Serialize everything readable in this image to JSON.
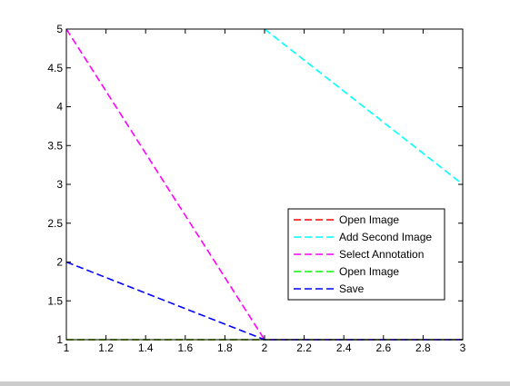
{
  "chart_data": {
    "type": "line",
    "title": "",
    "xlabel": "",
    "ylabel": "",
    "xlim": [
      1,
      3
    ],
    "ylim": [
      1,
      5
    ],
    "xticks": [
      1,
      1.2,
      1.4,
      1.6,
      1.8,
      2,
      2.2,
      2.4,
      2.6,
      2.8,
      3
    ],
    "xtick_labels": [
      "1",
      "1.2",
      "1.4",
      "1.6",
      "1.8",
      "2",
      "2.2",
      "2.4",
      "2.6",
      "2.8",
      "3"
    ],
    "yticks": [
      1,
      1.5,
      2,
      2.5,
      3,
      3.5,
      4,
      4.5,
      5
    ],
    "ytick_labels": [
      "1",
      "1.5",
      "2",
      "2.5",
      "3",
      "3.5",
      "4",
      "4.5",
      "5"
    ],
    "grid": false,
    "legend_position": "lower-right",
    "line_style": "dashed",
    "series": [
      {
        "name": "Open Image",
        "color": "#ff0000",
        "x": [
          1,
          2,
          3
        ],
        "y": [
          1,
          1,
          1
        ]
      },
      {
        "name": "Add Second Image",
        "color": "#00ffff",
        "x": [
          2,
          3
        ],
        "y": [
          5,
          3
        ]
      },
      {
        "name": "Select Annotation",
        "color": "#ff00ff",
        "x": [
          1,
          2,
          3
        ],
        "y": [
          5,
          1,
          1
        ]
      },
      {
        "name": "Open Image",
        "color": "#00ff00",
        "x": [
          1,
          2,
          3
        ],
        "y": [
          1,
          1,
          1
        ]
      },
      {
        "name": "Save",
        "color": "#0000ff",
        "x": [
          1,
          2,
          3
        ],
        "y": [
          2,
          1,
          1
        ]
      }
    ]
  }
}
